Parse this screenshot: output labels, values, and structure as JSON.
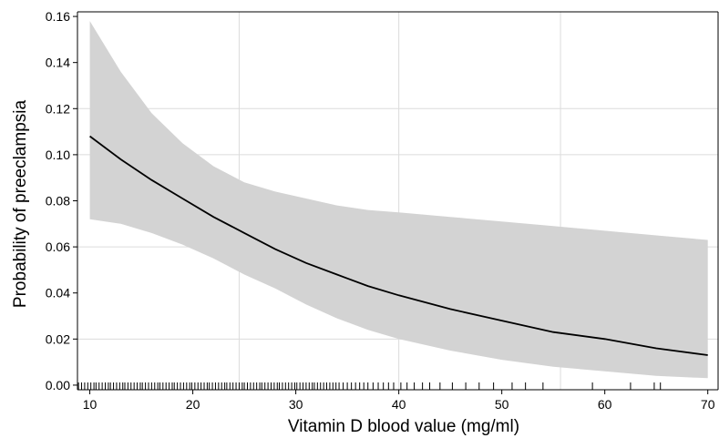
{
  "chart_data": {
    "type": "line",
    "title": "",
    "xlabel": "Vitamin D blood value (mg/ml)",
    "ylabel": "Probability of preeclampsia",
    "xlim": [
      8.8,
      71
    ],
    "ylim": [
      -0.002,
      0.162
    ],
    "x_ticks": [
      10,
      20,
      30,
      40,
      50,
      60,
      70
    ],
    "x_tick_labels": [
      "10",
      "20",
      "30",
      "40",
      "50",
      "60",
      "70"
    ],
    "y_ticks": [
      0,
      0.02,
      0.04,
      0.06,
      0.08,
      0.1,
      0.12,
      0.14,
      0.16
    ],
    "y_tick_labels": [
      "0.00",
      "0.02",
      "0.04",
      "0.06",
      "0.08",
      "0.10",
      "0.12",
      "0.14",
      "0.16"
    ],
    "grid": true,
    "grid_x": [
      24.5,
      40,
      55.7
    ],
    "grid_y": [
      0.02,
      0.06,
      0.1,
      0.12
    ],
    "series": [
      {
        "x": [
          10,
          13,
          16,
          19,
          22,
          25,
          28,
          31,
          34,
          37,
          40,
          45,
          50,
          55,
          60,
          65,
          70
        ],
        "y": [
          0.108,
          0.098,
          0.089,
          0.081,
          0.073,
          0.066,
          0.059,
          0.053,
          0.048,
          0.043,
          0.039,
          0.033,
          0.028,
          0.023,
          0.02,
          0.016,
          0.013
        ],
        "lower": [
          0.072,
          0.07,
          0.066,
          0.061,
          0.055,
          0.048,
          0.042,
          0.035,
          0.029,
          0.024,
          0.02,
          0.015,
          0.011,
          0.008,
          0.006,
          0.004,
          0.003
        ],
        "upper": [
          0.158,
          0.136,
          0.118,
          0.105,
          0.095,
          0.088,
          0.084,
          0.081,
          0.078,
          0.076,
          0.075,
          0.073,
          0.071,
          0.069,
          0.067,
          0.065,
          0.063
        ]
      }
    ],
    "rug": [
      8.9,
      9.2,
      9.5,
      9.8,
      10.1,
      10.4,
      10.6,
      10.9,
      11.2,
      11.5,
      11.8,
      12.0,
      12.3,
      12.6,
      12.9,
      13.2,
      13.4,
      13.7,
      14.0,
      14.3,
      14.6,
      14.9,
      15.1,
      15.4,
      15.7,
      16.0,
      16.3,
      16.6,
      16.8,
      17.1,
      17.4,
      17.7,
      18.0,
      18.2,
      18.5,
      18.8,
      19.1,
      19.4,
      19.7,
      19.9,
      20.2,
      20.5,
      20.8,
      21.1,
      21.4,
      21.6,
      21.9,
      22.2,
      22.5,
      22.8,
      23.1,
      23.3,
      23.6,
      23.9,
      24.2,
      24.5,
      24.8,
      25.0,
      25.3,
      25.6,
      25.9,
      26.2,
      26.5,
      26.7,
      27.0,
      27.3,
      27.6,
      27.9,
      28.2,
      28.4,
      28.7,
      29.0,
      29.3,
      29.6,
      29.9,
      30.1,
      30.4,
      30.7,
      31.0,
      31.3,
      31.6,
      31.8,
      32.1,
      32.4,
      32.7,
      33.0,
      33.3,
      33.6,
      33.9,
      34.2,
      34.6,
      35.0,
      35.4,
      35.8,
      36.2,
      36.6,
      37.0,
      37.5,
      38.0,
      38.5,
      39.0,
      39.5,
      40.2,
      40.8,
      41.5,
      42.3,
      43.0,
      44.0,
      45.2,
      46.5,
      47.8,
      49.2,
      51.0,
      52.3,
      54.0,
      58.8,
      62.5,
      64.8,
      65.4
    ]
  }
}
